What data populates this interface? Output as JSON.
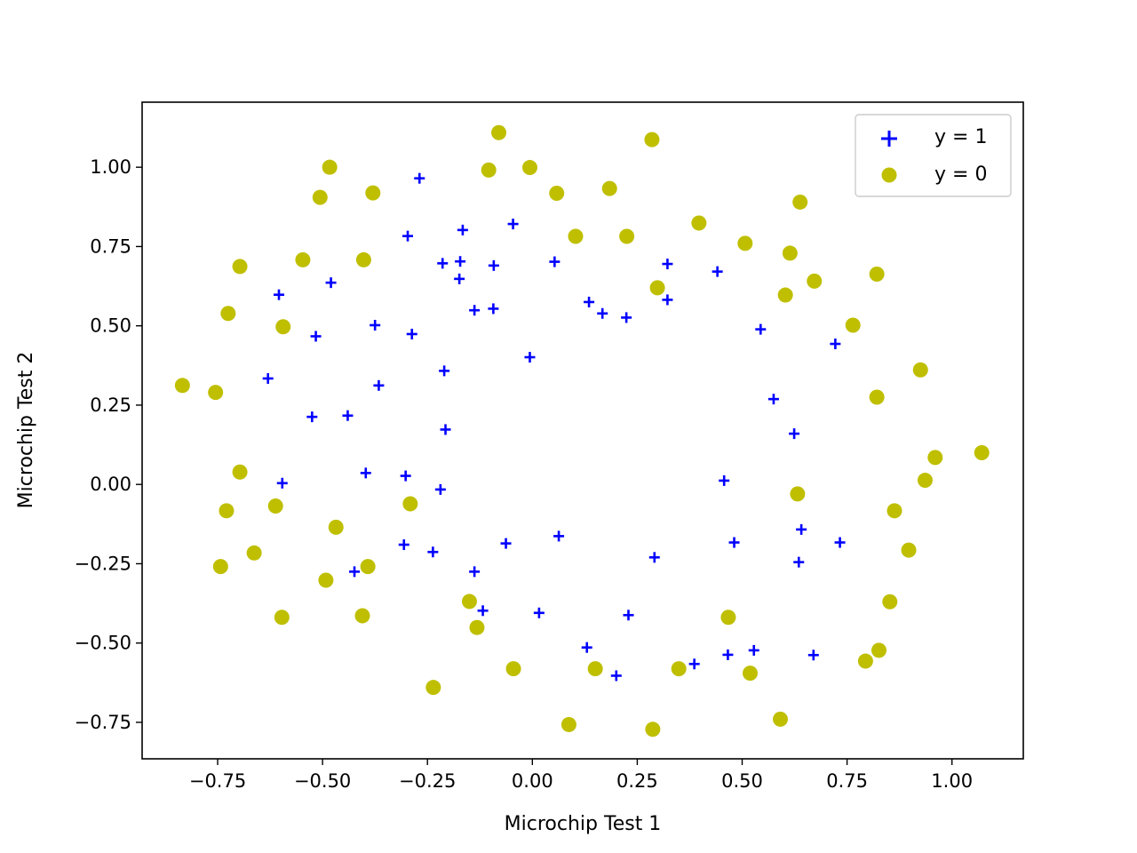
{
  "chart_data": {
    "type": "scatter",
    "title": "",
    "xlabel": "Microchip Test 1",
    "ylabel": "Microchip Test 2",
    "xlim": [
      -0.93,
      1.17
    ],
    "ylim": [
      -0.865,
      1.205
    ],
    "xticks": [
      -0.75,
      -0.5,
      -0.25,
      0.0,
      0.25,
      0.5,
      0.75,
      1.0
    ],
    "xtick_labels": [
      "−0.75",
      "−0.50",
      "−0.25",
      "0.00",
      "0.25",
      "0.50",
      "0.75",
      "1.00"
    ],
    "yticks": [
      -0.75,
      -0.5,
      -0.25,
      0.0,
      0.25,
      0.5,
      0.75,
      1.0
    ],
    "ytick_labels": [
      "−0.75",
      "−0.50",
      "−0.25",
      "0.00",
      "0.25",
      "0.50",
      "0.75",
      "1.00"
    ],
    "grid": false,
    "legend_position": "top-right",
    "series": [
      {
        "name": "y = 1",
        "marker": "plus",
        "color": "#0000ff",
        "points": [
          [
            -0.269,
            0.965
          ],
          [
            -0.297,
            0.783
          ],
          [
            -0.166,
            0.802
          ],
          [
            -0.046,
            0.821
          ],
          [
            -0.214,
            0.697
          ],
          [
            -0.172,
            0.703
          ],
          [
            -0.092,
            0.69
          ],
          [
            0.053,
            0.702
          ],
          [
            -0.174,
            0.648
          ],
          [
            -0.138,
            0.549
          ],
          [
            -0.093,
            0.554
          ],
          [
            0.135,
            0.575
          ],
          [
            0.167,
            0.539
          ],
          [
            0.224,
            0.526
          ],
          [
            0.322,
            0.695
          ],
          [
            0.322,
            0.582
          ],
          [
            0.441,
            0.671
          ],
          [
            0.544,
            0.489
          ],
          [
            0.722,
            0.443
          ],
          [
            -0.604,
            0.598
          ],
          [
            -0.48,
            0.636
          ],
          [
            -0.516,
            0.467
          ],
          [
            -0.375,
            0.502
          ],
          [
            -0.287,
            0.474
          ],
          [
            -0.21,
            0.358
          ],
          [
            -0.006,
            0.401
          ],
          [
            -0.63,
            0.334
          ],
          [
            -0.366,
            0.312
          ],
          [
            -0.525,
            0.213
          ],
          [
            -0.44,
            0.217
          ],
          [
            -0.207,
            0.173
          ],
          [
            0.575,
            0.269
          ],
          [
            0.624,
            0.16
          ],
          [
            -0.596,
            0.004
          ],
          [
            -0.397,
            0.036
          ],
          [
            -0.302,
            0.027
          ],
          [
            -0.219,
            -0.016
          ],
          [
            0.457,
            0.012
          ],
          [
            -0.306,
            -0.19
          ],
          [
            -0.237,
            -0.213
          ],
          [
            -0.138,
            -0.275
          ],
          [
            -0.063,
            -0.186
          ],
          [
            0.063,
            -0.163
          ],
          [
            0.291,
            -0.23
          ],
          [
            0.481,
            -0.183
          ],
          [
            0.641,
            -0.142
          ],
          [
            0.733,
            -0.183
          ],
          [
            0.635,
            -0.245
          ],
          [
            -0.424,
            -0.275
          ],
          [
            -0.118,
            -0.398
          ],
          [
            0.016,
            -0.405
          ],
          [
            0.229,
            -0.412
          ],
          [
            0.13,
            -0.514
          ],
          [
            0.2,
            -0.603
          ],
          [
            0.386,
            -0.566
          ],
          [
            0.466,
            -0.537
          ],
          [
            0.528,
            -0.523
          ],
          [
            0.67,
            -0.538
          ]
        ]
      },
      {
        "name": "y = 0",
        "marker": "circle",
        "color": "#bfbf00",
        "points": [
          [
            -0.08,
            1.109
          ],
          [
            0.285,
            1.087
          ],
          [
            -0.483,
            1.0
          ],
          [
            -0.104,
            0.991
          ],
          [
            -0.006,
            0.999
          ],
          [
            -0.506,
            0.905
          ],
          [
            -0.38,
            0.919
          ],
          [
            0.058,
            0.918
          ],
          [
            0.184,
            0.933
          ],
          [
            0.638,
            0.89
          ],
          [
            -0.697,
            0.687
          ],
          [
            -0.547,
            0.708
          ],
          [
            -0.402,
            0.708
          ],
          [
            0.103,
            0.782
          ],
          [
            0.225,
            0.782
          ],
          [
            0.397,
            0.824
          ],
          [
            0.507,
            0.76
          ],
          [
            0.614,
            0.729
          ],
          [
            0.672,
            0.641
          ],
          [
            0.821,
            0.663
          ],
          [
            -0.725,
            0.539
          ],
          [
            -0.594,
            0.497
          ],
          [
            0.298,
            0.62
          ],
          [
            0.603,
            0.597
          ],
          [
            0.764,
            0.502
          ],
          [
            -0.834,
            0.312
          ],
          [
            -0.755,
            0.29
          ],
          [
            0.925,
            0.361
          ],
          [
            0.821,
            0.275
          ],
          [
            -0.697,
            0.039
          ],
          [
            -0.612,
            -0.068
          ],
          [
            -0.729,
            -0.083
          ],
          [
            -0.291,
            -0.061
          ],
          [
            0.632,
            -0.03
          ],
          [
            0.96,
            0.085
          ],
          [
            1.071,
            0.1
          ],
          [
            0.936,
            0.013
          ],
          [
            0.863,
            -0.083
          ],
          [
            -0.468,
            -0.135
          ],
          [
            -0.663,
            -0.216
          ],
          [
            -0.743,
            -0.259
          ],
          [
            -0.492,
            -0.302
          ],
          [
            -0.392,
            -0.259
          ],
          [
            0.897,
            -0.207
          ],
          [
            -0.597,
            -0.419
          ],
          [
            -0.405,
            -0.414
          ],
          [
            -0.15,
            -0.369
          ],
          [
            -0.132,
            -0.451
          ],
          [
            0.467,
            -0.419
          ],
          [
            0.852,
            -0.37
          ],
          [
            -0.236,
            -0.64
          ],
          [
            -0.045,
            -0.581
          ],
          [
            0.15,
            -0.581
          ],
          [
            0.349,
            -0.581
          ],
          [
            0.519,
            -0.595
          ],
          [
            0.794,
            -0.557
          ],
          [
            0.826,
            -0.523
          ],
          [
            0.087,
            -0.757
          ],
          [
            0.287,
            -0.772
          ],
          [
            0.591,
            -0.74
          ]
        ]
      }
    ]
  }
}
